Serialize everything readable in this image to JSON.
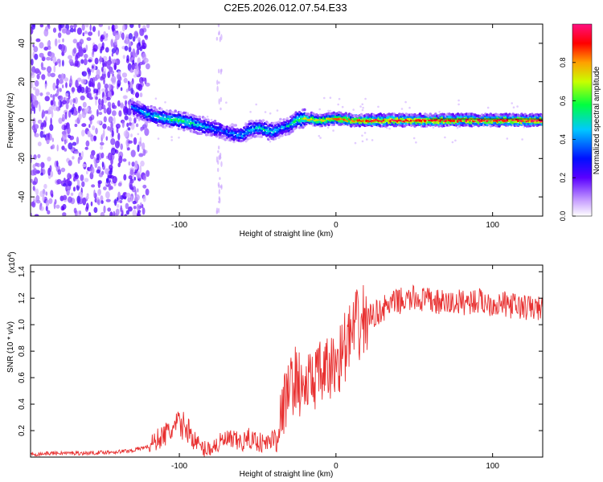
{
  "figure_title": "C2E5.2026.012.07.54.E33",
  "chart_data": [
    {
      "type": "heatmap",
      "title": "C2E5.2026.012.07.54.E33",
      "xlabel": "Height of straight line (km)",
      "ylabel": "Frequency (Hz)",
      "xlim": [
        -195,
        132
      ],
      "ylim": [
        -50,
        50
      ],
      "x_ticks": [
        -100,
        0,
        100
      ],
      "x_tick_labels": [
        "-100",
        "0",
        "100"
      ],
      "y_ticks": [
        -40,
        -20,
        0,
        20,
        40
      ],
      "y_tick_labels": [
        "-40",
        "-20",
        "0",
        "20",
        "40"
      ],
      "colorbar": {
        "label": "Normalized spectral amplitude",
        "range": [
          0,
          1
        ],
        "ticks": [
          0.0,
          0.2,
          0.4,
          0.6,
          0.8
        ],
        "tick_labels": [
          "0.0",
          "0.2",
          "0.4",
          "0.6",
          "0.8"
        ],
        "colors": [
          "#ffffff",
          "#b070ff",
          "#5a00ff",
          "#0010ff",
          "#00c8ff",
          "#00ff40",
          "#c8ff00",
          "#ffa000",
          "#ff0000",
          "#ff1080"
        ]
      },
      "ridge": {
        "x": [
          -130,
          -120,
          -110,
          -100,
          -90,
          -80,
          -70,
          -60,
          -55,
          -50,
          -45,
          -40,
          -35,
          -30,
          -25,
          -20,
          -10,
          0,
          10,
          20,
          40,
          60,
          80,
          100,
          120,
          132
        ],
        "frequency": [
          7,
          3,
          1,
          0,
          -2,
          -4,
          -6,
          -8,
          -5,
          -4,
          -5,
          -6,
          -4,
          -3,
          0,
          1,
          0,
          1,
          0,
          0,
          0,
          0,
          0,
          0,
          0,
          0
        ],
        "amplitude": [
          0.35,
          0.45,
          0.5,
          0.55,
          0.5,
          0.4,
          0.35,
          0.4,
          0.45,
          0.5,
          0.5,
          0.45,
          0.4,
          0.5,
          0.55,
          0.7,
          0.75,
          0.8,
          0.85,
          0.9,
          0.95,
          0.9,
          0.92,
          0.9,
          0.95,
          0.95
        ]
      }
    },
    {
      "type": "line",
      "xlabel": "Height of straight line (km)",
      "ylabel": "SNR (10 * v/v)",
      "y_scale_label": "(x10",
      "y_scale_exponent": "4",
      "xlim": [
        -195,
        132
      ],
      "ylim": [
        0,
        1.45
      ],
      "x_ticks": [
        -100,
        0,
        100
      ],
      "x_tick_labels": [
        "-100",
        "0",
        "100"
      ],
      "y_ticks": [
        0.2,
        0.4,
        0.6,
        0.8,
        1.0,
        1.2,
        1.4
      ],
      "y_tick_labels": [
        "0.2",
        "0.4",
        "0.6",
        "0.8",
        "1.0",
        "1.2",
        "1.4"
      ],
      "color": "#e83030",
      "series": [
        {
          "x": [
            -195,
            -180,
            -160,
            -140,
            -130,
            -120,
            -112,
            -105,
            -100,
            -95,
            -90,
            -85,
            -80,
            -75,
            -70,
            -65,
            -60,
            -55,
            -50,
            -45,
            -40,
            -35,
            -32,
            -28,
            -25,
            -22,
            -18,
            -14,
            -10,
            -5,
            0,
            5,
            10,
            15,
            20,
            25,
            30,
            35,
            40,
            45,
            50,
            60,
            70,
            80,
            90,
            100,
            110,
            120,
            132
          ],
          "values": [
            0.02,
            0.03,
            0.03,
            0.04,
            0.05,
            0.08,
            0.15,
            0.2,
            0.25,
            0.22,
            0.12,
            0.06,
            0.07,
            0.1,
            0.13,
            0.12,
            0.11,
            0.14,
            0.12,
            0.1,
            0.14,
            0.3,
            0.45,
            0.55,
            0.62,
            0.5,
            0.55,
            0.6,
            0.62,
            0.65,
            0.7,
            0.82,
            0.92,
            1.0,
            1.05,
            1.08,
            1.12,
            1.15,
            1.18,
            1.18,
            1.2,
            1.18,
            1.16,
            1.17,
            1.18,
            1.16,
            1.15,
            1.13,
            1.12
          ]
        }
      ]
    }
  ]
}
